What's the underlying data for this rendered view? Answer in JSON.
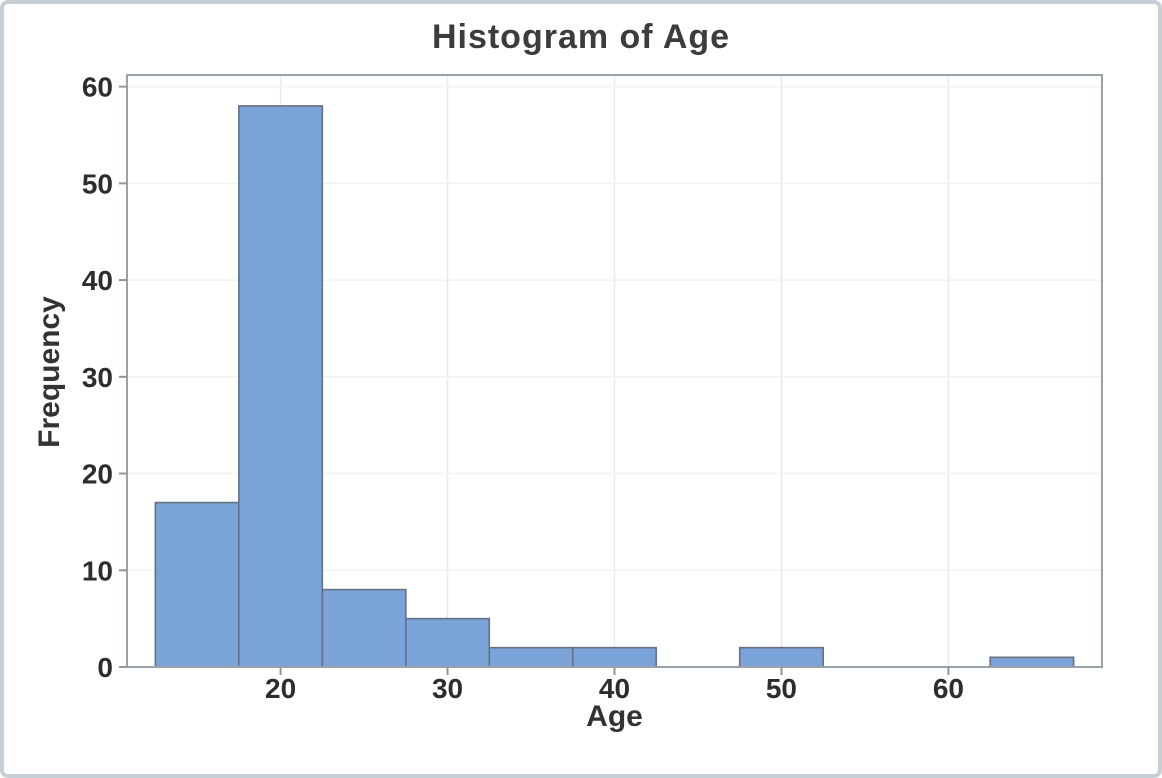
{
  "chart_data": {
    "type": "bar",
    "subtype": "histogram",
    "title": "Histogram of Age",
    "xlabel": "Age",
    "ylabel": "Frequency",
    "bins": [
      {
        "start": 12.5,
        "end": 17.5,
        "count": 17
      },
      {
        "start": 17.5,
        "end": 22.5,
        "count": 58
      },
      {
        "start": 22.5,
        "end": 27.5,
        "count": 8
      },
      {
        "start": 27.5,
        "end": 32.5,
        "count": 5
      },
      {
        "start": 32.5,
        "end": 37.5,
        "count": 2
      },
      {
        "start": 37.5,
        "end": 42.5,
        "count": 2
      },
      {
        "start": 42.5,
        "end": 47.5,
        "count": 0
      },
      {
        "start": 47.5,
        "end": 52.5,
        "count": 2
      },
      {
        "start": 52.5,
        "end": 57.5,
        "count": 0
      },
      {
        "start": 57.5,
        "end": 62.5,
        "count": 0
      },
      {
        "start": 62.5,
        "end": 67.5,
        "count": 1
      }
    ],
    "x_ticks": [
      20,
      30,
      40,
      50,
      60
    ],
    "y_ticks": [
      0,
      10,
      20,
      30,
      40,
      50,
      60
    ],
    "xlim": [
      10.8,
      69.2
    ],
    "ylim": [
      0,
      61.2
    ],
    "grid": true,
    "legend_position": "none",
    "colors": {
      "bar_fill": "#7AA3D9",
      "bar_border": "#66707F",
      "frame": "#9BA1A8",
      "tick_mark": "#8F959C",
      "grid_vertical": "#E9E9E9",
      "grid_horizontal": "#F2F2F2",
      "tick_text": "#2D2D2D",
      "title_text": "#3C3C3C",
      "window_border": "#C8CED6",
      "background": "#FFFFFF"
    }
  }
}
